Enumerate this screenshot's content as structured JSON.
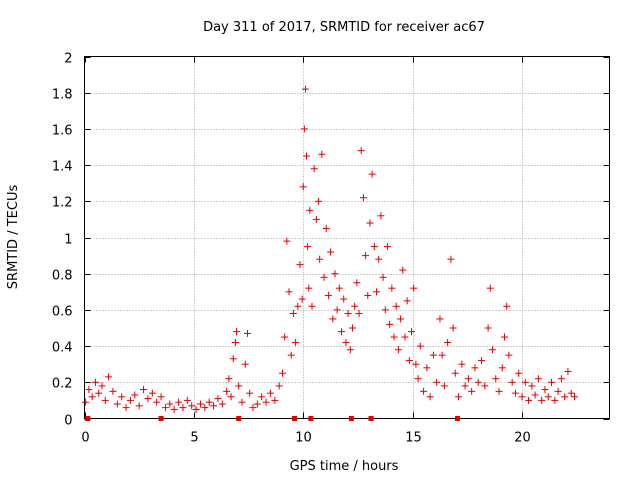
{
  "chart_data": {
    "type": "scatter",
    "title": "Day 311 of 2017, SRMTID for receiver ac67",
    "xlabel": "GPS time / hours",
    "ylabel": "SRMTID / TECUs",
    "xlim": [
      0,
      24
    ],
    "ylim": [
      0,
      2
    ],
    "xticks": [
      "0",
      "5",
      "10",
      "15",
      "20"
    ],
    "xtick_values": [
      0,
      5,
      10,
      15,
      20
    ],
    "yticks": [
      "0",
      "0.2",
      "0.4",
      "0.6",
      "0.8",
      "1",
      "1.2",
      "1.4",
      "1.6",
      "1.8",
      "2"
    ],
    "ytick_values": [
      0,
      0.2,
      0.4,
      0.6,
      0.8,
      1.0,
      1.2,
      1.4,
      1.6,
      1.8,
      2.0
    ],
    "grid": true,
    "marker": "+",
    "color": "#e00000",
    "series": [
      {
        "name": "SRMTID",
        "points": [
          [
            0.05,
            0.09
          ],
          [
            0.2,
            0.16
          ],
          [
            0.35,
            0.12
          ],
          [
            0.5,
            0.2
          ],
          [
            0.65,
            0.14
          ],
          [
            0.8,
            0.18
          ],
          [
            0.95,
            0.1
          ],
          [
            1.1,
            0.23
          ],
          [
            1.3,
            0.15
          ],
          [
            1.5,
            0.08
          ],
          [
            1.7,
            0.12
          ],
          [
            1.9,
            0.06
          ],
          [
            2.1,
            0.1
          ],
          [
            2.3,
            0.13
          ],
          [
            2.5,
            0.07
          ],
          [
            2.7,
            0.16
          ],
          [
            2.9,
            0.11
          ],
          [
            3.1,
            0.14
          ],
          [
            3.3,
            0.09
          ],
          [
            3.5,
            0.12
          ],
          [
            3.7,
            0.06
          ],
          [
            3.9,
            0.08
          ],
          [
            4.1,
            0.05
          ],
          [
            4.3,
            0.09
          ],
          [
            4.5,
            0.06
          ],
          [
            4.7,
            0.1
          ],
          [
            4.9,
            0.07
          ],
          [
            5.1,
            0.05
          ],
          [
            5.3,
            0.08
          ],
          [
            5.5,
            0.06
          ],
          [
            5.7,
            0.09
          ],
          [
            5.9,
            0.07
          ],
          [
            6.1,
            0.11
          ],
          [
            6.3,
            0.08
          ],
          [
            6.5,
            0.15
          ],
          [
            6.6,
            0.22
          ],
          [
            6.7,
            0.12
          ],
          [
            6.8,
            0.33
          ],
          [
            6.9,
            0.42
          ],
          [
            6.95,
            0.48
          ],
          [
            7.05,
            0.18
          ],
          [
            7.2,
            0.09
          ],
          [
            7.35,
            0.3
          ],
          [
            7.45,
            0.47
          ],
          [
            7.55,
            0.14
          ],
          [
            7.7,
            0.06
          ],
          [
            7.9,
            0.08
          ],
          [
            8.1,
            0.12
          ],
          [
            8.3,
            0.09
          ],
          [
            8.5,
            0.14
          ],
          [
            8.7,
            0.1
          ],
          [
            8.9,
            0.18
          ],
          [
            9.05,
            0.25
          ],
          [
            9.15,
            0.45
          ],
          [
            9.25,
            0.98
          ],
          [
            9.35,
            0.7
          ],
          [
            9.45,
            0.35
          ],
          [
            9.55,
            0.58
          ],
          [
            9.65,
            0.42
          ],
          [
            9.75,
            0.62
          ],
          [
            9.85,
            0.85
          ],
          [
            9.95,
            0.66
          ],
          [
            10.0,
            1.28
          ],
          [
            10.05,
            1.6
          ],
          [
            10.1,
            1.82
          ],
          [
            10.15,
            1.45
          ],
          [
            10.2,
            0.95
          ],
          [
            10.25,
            0.72
          ],
          [
            10.3,
            1.15
          ],
          [
            10.4,
            0.62
          ],
          [
            10.5,
            1.38
          ],
          [
            10.6,
            1.1
          ],
          [
            10.7,
            1.2
          ],
          [
            10.75,
            0.88
          ],
          [
            10.85,
            1.46
          ],
          [
            10.95,
            0.78
          ],
          [
            11.05,
            1.05
          ],
          [
            11.15,
            0.68
          ],
          [
            11.25,
            0.92
          ],
          [
            11.35,
            0.55
          ],
          [
            11.45,
            0.8
          ],
          [
            11.55,
            0.6
          ],
          [
            11.65,
            0.72
          ],
          [
            11.75,
            0.48
          ],
          [
            11.85,
            0.66
          ],
          [
            11.95,
            0.42
          ],
          [
            12.05,
            0.58
          ],
          [
            12.15,
            0.38
          ],
          [
            12.25,
            0.5
          ],
          [
            12.35,
            0.62
          ],
          [
            12.45,
            0.75
          ],
          [
            12.55,
            0.58
          ],
          [
            12.65,
            1.48
          ],
          [
            12.75,
            1.22
          ],
          [
            12.85,
            0.9
          ],
          [
            12.95,
            0.68
          ],
          [
            13.05,
            1.08
          ],
          [
            13.15,
            1.35
          ],
          [
            13.25,
            0.95
          ],
          [
            13.35,
            0.7
          ],
          [
            13.45,
            0.88
          ],
          [
            13.55,
            1.12
          ],
          [
            13.65,
            0.78
          ],
          [
            13.75,
            0.6
          ],
          [
            13.85,
            0.95
          ],
          [
            13.95,
            0.52
          ],
          [
            14.05,
            0.72
          ],
          [
            14.15,
            0.45
          ],
          [
            14.25,
            0.62
          ],
          [
            14.35,
            0.38
          ],
          [
            14.45,
            0.55
          ],
          [
            14.55,
            0.82
          ],
          [
            14.65,
            0.45
          ],
          [
            14.75,
            0.65
          ],
          [
            14.85,
            0.32
          ],
          [
            14.95,
            0.48
          ],
          [
            15.05,
            0.72
          ],
          [
            15.15,
            0.3
          ],
          [
            15.25,
            0.22
          ],
          [
            15.35,
            0.4
          ],
          [
            15.5,
            0.15
          ],
          [
            15.65,
            0.28
          ],
          [
            15.8,
            0.12
          ],
          [
            15.95,
            0.35
          ],
          [
            16.1,
            0.2
          ],
          [
            16.25,
            0.55
          ],
          [
            16.35,
            0.35
          ],
          [
            16.45,
            0.18
          ],
          [
            16.6,
            0.42
          ],
          [
            16.75,
            0.88
          ],
          [
            16.85,
            0.5
          ],
          [
            16.95,
            0.25
          ],
          [
            17.1,
            0.12
          ],
          [
            17.25,
            0.3
          ],
          [
            17.4,
            0.18
          ],
          [
            17.55,
            0.22
          ],
          [
            17.7,
            0.15
          ],
          [
            17.85,
            0.28
          ],
          [
            18.0,
            0.2
          ],
          [
            18.15,
            0.32
          ],
          [
            18.3,
            0.18
          ],
          [
            18.45,
            0.5
          ],
          [
            18.55,
            0.72
          ],
          [
            18.65,
            0.38
          ],
          [
            18.8,
            0.22
          ],
          [
            18.95,
            0.15
          ],
          [
            19.1,
            0.28
          ],
          [
            19.2,
            0.45
          ],
          [
            19.3,
            0.62
          ],
          [
            19.4,
            0.35
          ],
          [
            19.55,
            0.2
          ],
          [
            19.7,
            0.14
          ],
          [
            19.85,
            0.25
          ],
          [
            20.0,
            0.12
          ],
          [
            20.15,
            0.2
          ],
          [
            20.3,
            0.1
          ],
          [
            20.45,
            0.18
          ],
          [
            20.6,
            0.13
          ],
          [
            20.75,
            0.22
          ],
          [
            20.9,
            0.1
          ],
          [
            21.05,
            0.16
          ],
          [
            21.2,
            0.12
          ],
          [
            21.35,
            0.2
          ],
          [
            21.5,
            0.1
          ],
          [
            21.65,
            0.15
          ],
          [
            21.8,
            0.22
          ],
          [
            21.95,
            0.12
          ],
          [
            22.1,
            0.26
          ],
          [
            22.25,
            0.14
          ],
          [
            22.4,
            0.12
          ]
        ]
      }
    ],
    "gap_markers": [
      0.15,
      3.5,
      7.05,
      9.6,
      10.35,
      12.2,
      13.1,
      17.05
    ]
  }
}
